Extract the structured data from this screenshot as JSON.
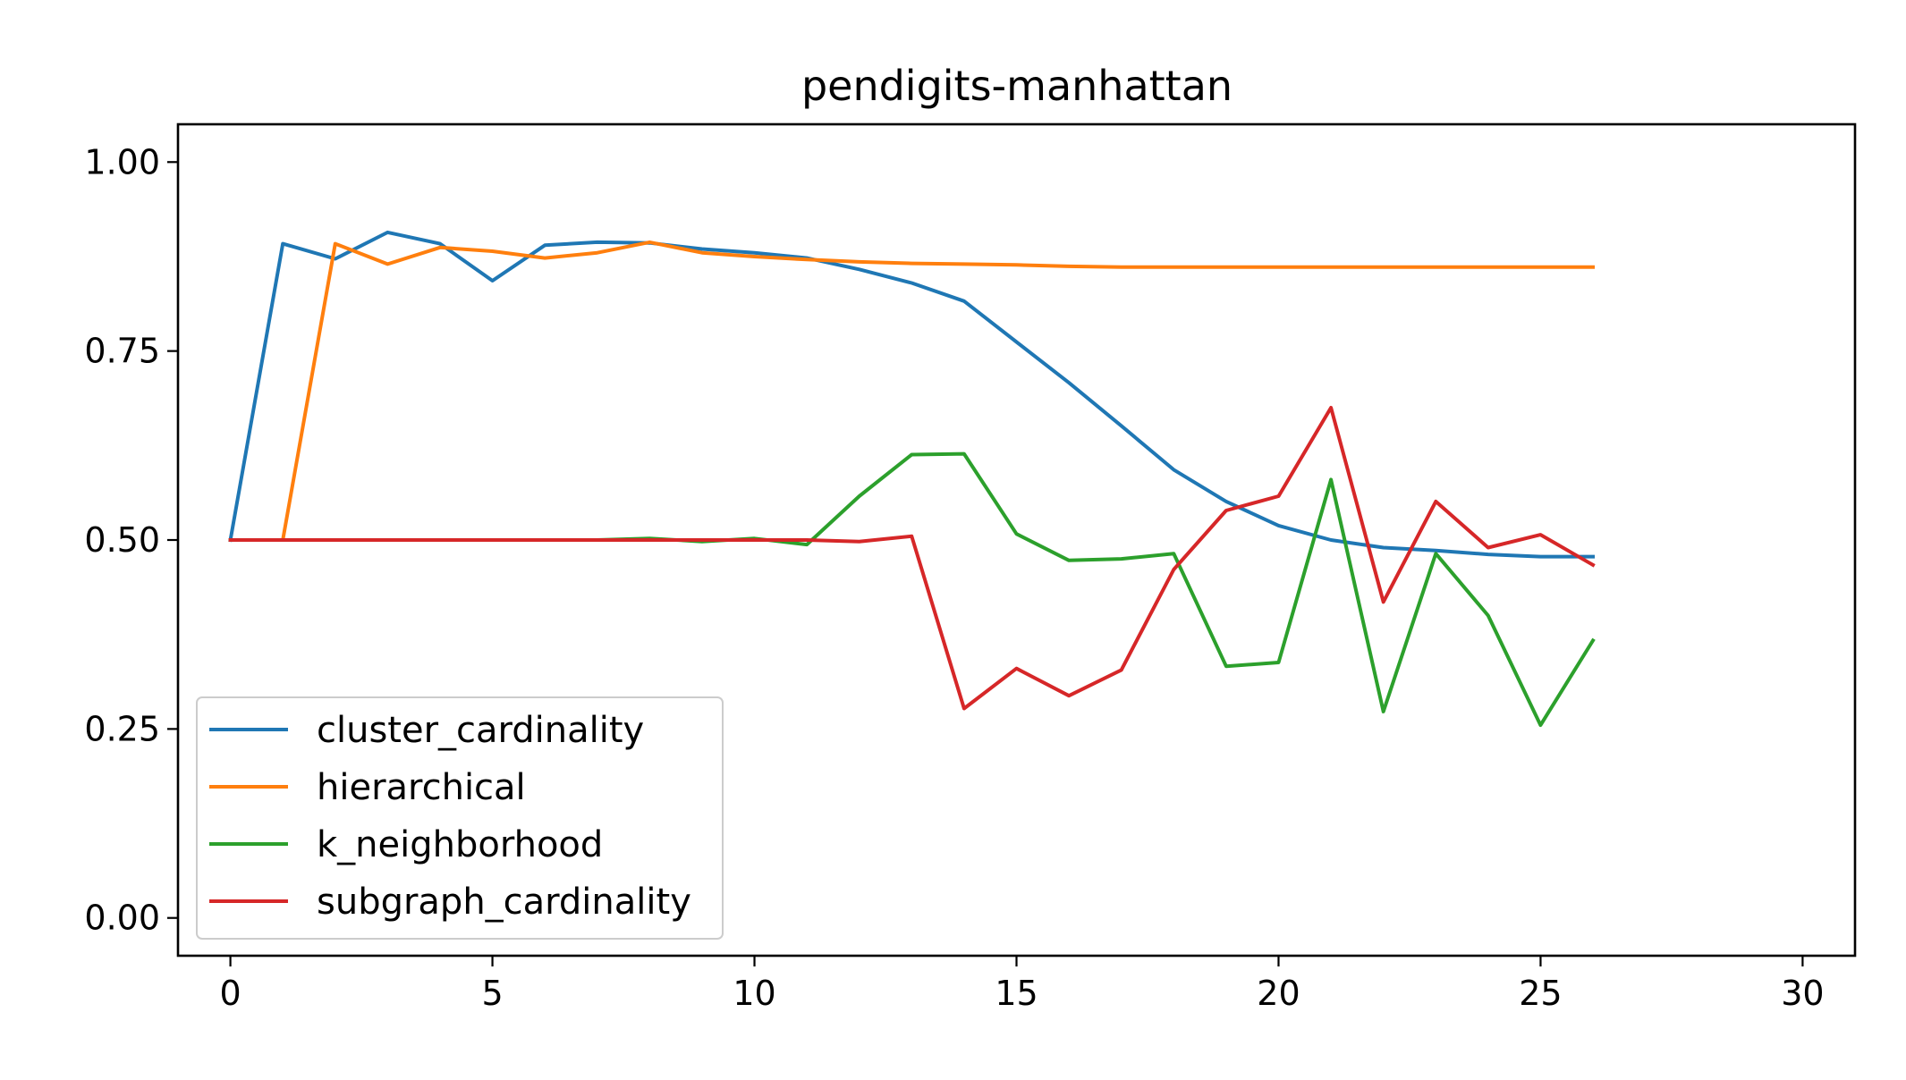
{
  "chart_data": {
    "type": "line",
    "title": "pendigits-manhattan",
    "xlabel": "",
    "ylabel": "",
    "xlim": [
      -1,
      31
    ],
    "ylim": [
      -0.05,
      1.05
    ],
    "xticks": [
      0,
      5,
      10,
      15,
      20,
      25,
      30
    ],
    "xtick_labels": [
      "0",
      "5",
      "10",
      "15",
      "20",
      "25",
      "30"
    ],
    "yticks": [
      0.0,
      0.25,
      0.5,
      0.75,
      1.0
    ],
    "ytick_labels": [
      "0.00",
      "0.25",
      "0.50",
      "0.75",
      "1.00"
    ],
    "grid": false,
    "legend_position": "lower-left",
    "x": [
      0,
      1,
      2,
      3,
      4,
      5,
      6,
      7,
      8,
      9,
      10,
      11,
      12,
      13,
      14,
      15,
      16,
      17,
      18,
      19,
      20,
      21,
      22,
      23,
      24,
      25,
      26
    ],
    "series": [
      {
        "name": "cluster_cardinality",
        "color": "#1f77b4",
        "values": [
          0.5,
          0.892,
          0.872,
          0.907,
          0.892,
          0.843,
          0.89,
          0.894,
          0.893,
          0.885,
          0.88,
          0.873,
          0.858,
          0.84,
          0.816,
          0.762,
          0.708,
          0.651,
          0.593,
          0.551,
          0.519,
          0.5,
          0.49,
          0.486,
          0.481,
          0.478,
          0.478
        ]
      },
      {
        "name": "hierarchical",
        "color": "#ff7f0e",
        "values": [
          0.5,
          0.5,
          0.892,
          0.865,
          0.887,
          0.882,
          0.873,
          0.88,
          0.894,
          0.88,
          0.875,
          0.871,
          0.868,
          0.866,
          0.865,
          0.864,
          0.862,
          0.861,
          0.861,
          0.861,
          0.861,
          0.861,
          0.861,
          0.861,
          0.861,
          0.861,
          0.861
        ]
      },
      {
        "name": "k_neighborhood",
        "color": "#2ca02c",
        "values": [
          0.5,
          0.5,
          0.5,
          0.5,
          0.5,
          0.5,
          0.5,
          0.5,
          0.502,
          0.498,
          0.502,
          0.494,
          0.558,
          0.613,
          0.614,
          0.508,
          0.473,
          0.475,
          0.482,
          0.333,
          0.338,
          0.58,
          0.273,
          0.482,
          0.4,
          0.255,
          0.367
        ]
      },
      {
        "name": "subgraph_cardinality",
        "color": "#d62728",
        "values": [
          0.5,
          0.5,
          0.5,
          0.5,
          0.5,
          0.5,
          0.5,
          0.5,
          0.5,
          0.5,
          0.5,
          0.5,
          0.498,
          0.505,
          0.277,
          0.33,
          0.294,
          0.328,
          0.461,
          0.539,
          0.558,
          0.675,
          0.418,
          0.551,
          0.49,
          0.507,
          0.467
        ]
      }
    ]
  }
}
